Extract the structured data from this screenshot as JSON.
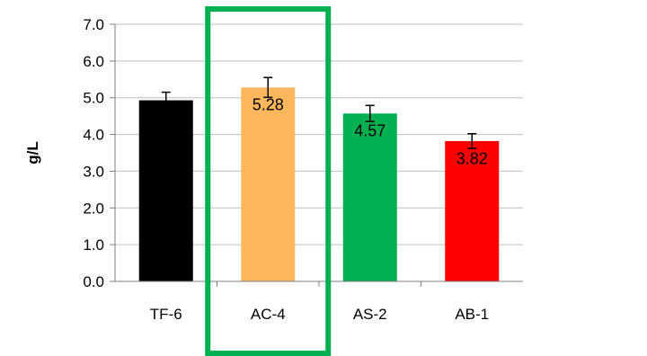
{
  "chart_data": {
    "type": "bar",
    "title": "",
    "xlabel": "",
    "ylabel": "g/L",
    "ylim": [
      0,
      7
    ],
    "yticks": [
      "0.0",
      "1.0",
      "2.0",
      "3.0",
      "4.0",
      "5.0",
      "6.0",
      "7.0"
    ],
    "grid": true,
    "legend": "none",
    "categories": [
      "TF-6",
      "AC-4",
      "AS-2",
      "AB-1"
    ],
    "values": [
      4.93,
      5.28,
      4.57,
      3.82
    ],
    "errors": [
      0.22,
      0.27,
      0.22,
      0.2
    ],
    "data_labels": [
      "",
      "5.28",
      "4.57",
      "3.82"
    ],
    "colors": [
      "#000000",
      "#FFB75E",
      "#00B050",
      "#FF0000"
    ],
    "highlight": {
      "category": "AC-4",
      "color": "#00B050"
    }
  }
}
